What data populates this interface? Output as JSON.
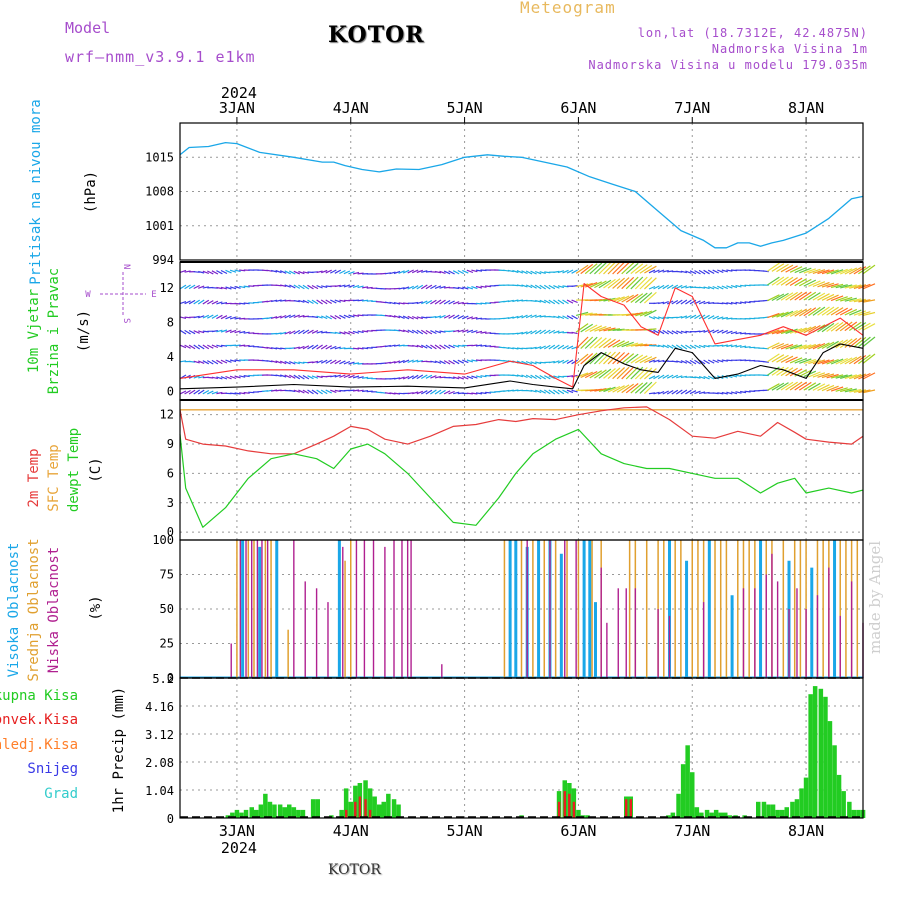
{
  "header": {
    "model_label": "Model",
    "model_run": "wrf—nmm_v3.9.1  e1km",
    "location_title": "KOTOR",
    "meteogram_label": "Meteogram",
    "lonlat": "lon,lat (18.7312E, 42.4875N)",
    "elevation": "Nadmorska Visina 1m",
    "model_elevation": "Nadmorska Visina u modelu 179.035m"
  },
  "footer": {
    "location": "KOTOR"
  },
  "watermark": "made by Angel",
  "time_axis": {
    "year": "2024",
    "days": [
      "3JAN",
      "4JAN",
      "5JAN",
      "6JAN",
      "7JAN",
      "8JAN"
    ]
  },
  "colors": {
    "pressure": "#1aa7e8",
    "temp2m": "#e63c3c",
    "sfc_temp": "#e8a53a",
    "dewpoint": "#22cc22",
    "high_cloud": "#1aa7e8",
    "mid_cloud": "#e0a030",
    "low_cloud": "#b02090",
    "total_precip": "#22cc22",
    "conv_precip": "#e62020",
    "freezing": "#ff7f2a",
    "snow": "#3a3ae6",
    "hail": "#33cccc",
    "wind_speed": "#000000",
    "gust": "#ff3030"
  },
  "chart_data": [
    {
      "type": "line",
      "id": "pressure",
      "ylabel_name": "Pritisak na nivou mora",
      "ylabel_unit": "(hPa)",
      "ylim": [
        994,
        1022
      ],
      "yticks": [
        "1015",
        "1008",
        "1001",
        "994"
      ],
      "x_days": [
        2.5,
        2.58,
        2.75,
        2.9,
        3.0,
        3.2,
        3.5,
        3.75,
        3.85,
        3.95,
        4.1,
        4.25,
        4.4,
        4.6,
        4.8,
        5.0,
        5.2,
        5.35,
        5.5,
        5.7,
        5.9,
        6.1,
        6.3,
        6.5,
        6.7,
        6.9,
        7.1,
        7.2,
        7.3,
        7.4,
        7.5,
        7.6,
        7.7,
        7.8,
        8.0,
        8.2,
        8.4,
        8.5
      ],
      "values": [
        1015.5,
        1017,
        1017.2,
        1018,
        1017.8,
        1016,
        1015,
        1014,
        1014,
        1013.3,
        1012.5,
        1012,
        1012.6,
        1012.5,
        1013.5,
        1015,
        1015.5,
        1015.2,
        1015,
        1014,
        1013,
        1011,
        1009.5,
        1008,
        1004,
        1000,
        998,
        996.5,
        996.5,
        997.5,
        997.5,
        996.8,
        997.5,
        998,
        999.5,
        1002.5,
        1006.5,
        1007
      ]
    },
    {
      "type": "line",
      "id": "wind",
      "ylabel_name": "10m Vjetar",
      "ylabel_name2": "Brzina i Pravac",
      "ylabel_unit": "(m/s)",
      "compass": {
        "n": "N",
        "s": "S",
        "w": "W",
        "e": "E"
      },
      "ylim": [
        -1,
        15
      ],
      "yticks": [
        "12",
        "8",
        "4",
        "0"
      ],
      "x_days": [
        2.5,
        3.0,
        3.5,
        4.0,
        4.5,
        5.0,
        5.4,
        5.6,
        5.8,
        5.95,
        6.05,
        6.2,
        6.4,
        6.55,
        6.7,
        6.85,
        7.0,
        7.2,
        7.4,
        7.6,
        7.8,
        8.0,
        8.15,
        8.3,
        8.5
      ],
      "speed": [
        0.3,
        0.5,
        0.8,
        0.5,
        0.6,
        0.4,
        1.2,
        0.8,
        0.5,
        0.3,
        3.0,
        4.5,
        3.2,
        2.5,
        2.2,
        5.0,
        4.5,
        1.5,
        2.0,
        3.0,
        2.5,
        1.5,
        4.5,
        5.5,
        5.0
      ],
      "gust": [
        1.5,
        2.5,
        2.5,
        2.0,
        2.5,
        2.0,
        3.5,
        3.0,
        1.5,
        0.5,
        12.5,
        11.0,
        10.0,
        7.5,
        6.5,
        12.0,
        11.0,
        5.5,
        6.0,
        6.5,
        7.5,
        6.5,
        7.5,
        8.5,
        6.5
      ]
    },
    {
      "type": "line",
      "id": "temperature",
      "ylabel_name": "2m Temp",
      "ylabel_name2": "SFC Temp",
      "ylabel_name3": "dewpt Temp",
      "ylabel_unit": "(C)",
      "ylim": [
        -0.8,
        13.5
      ],
      "yticks": [
        "12",
        "9",
        "6",
        "3",
        "0"
      ],
      "x_days": [
        2.5,
        2.55,
        2.7,
        2.9,
        3.1,
        3.3,
        3.5,
        3.7,
        3.85,
        4.0,
        4.15,
        4.3,
        4.5,
        4.7,
        4.9,
        5.1,
        5.3,
        5.45,
        5.6,
        5.8,
        6.0,
        6.2,
        6.4,
        6.6,
        6.8,
        7.0,
        7.2,
        7.4,
        7.6,
        7.75,
        7.9,
        8.0,
        8.2,
        8.4,
        8.5
      ],
      "temp2m": [
        12.5,
        9.5,
        9.0,
        8.8,
        8.3,
        8.0,
        8.0,
        9.0,
        9.8,
        10.8,
        10.5,
        9.5,
        9.0,
        9.8,
        10.8,
        11.0,
        11.5,
        11.3,
        11.6,
        11.5,
        12.0,
        12.4,
        12.7,
        12.8,
        11.5,
        9.8,
        9.6,
        10.3,
        9.8,
        11.2,
        10.2,
        9.5,
        9.2,
        9.0,
        9.8
      ],
      "sfc_temp": 12.5,
      "dewpoint": [
        10.0,
        4.5,
        0.5,
        2.5,
        5.5,
        7.5,
        8.0,
        7.5,
        6.5,
        8.5,
        9.0,
        8.0,
        6.0,
        3.5,
        1.0,
        0.7,
        3.5,
        6.0,
        8.0,
        9.5,
        10.5,
        8.0,
        7.0,
        6.5,
        6.5,
        6.0,
        5.5,
        5.5,
        4.0,
        5.0,
        5.5,
        4.0,
        4.5,
        4.0,
        4.3
      ]
    },
    {
      "type": "bar",
      "id": "cloud",
      "ylabel_name": "Visoka Oblacnost",
      "ylabel_name2": "Srednja Oblacnost",
      "ylabel_name3": "Niska Oblacnost",
      "ylabel_unit": "(%)",
      "ylim": [
        0,
        100
      ],
      "yticks": [
        "100",
        "75",
        "50",
        "25",
        "0"
      ],
      "series": [
        {
          "name": "Visoka Oblacnost",
          "x_days": [
            3.05,
            3.2,
            3.35,
            3.9,
            5.4,
            5.45,
            5.55,
            5.65,
            5.75,
            5.85,
            6.05,
            6.1,
            6.15,
            6.8,
            6.95,
            7.15,
            7.35,
            7.6,
            7.85,
            8.05,
            8.25
          ],
          "values": [
            100,
            95,
            100,
            100,
            100,
            100,
            95,
            100,
            100,
            90,
            100,
            100,
            55,
            100,
            85,
            100,
            60,
            100,
            85,
            80,
            100
          ]
        },
        {
          "name": "Srednja Oblacnost",
          "x_days": [
            3.0,
            3.1,
            3.15,
            3.25,
            3.3,
            3.45,
            3.95,
            4.0,
            5.35,
            5.5,
            5.6,
            5.7,
            5.8,
            5.9,
            6.0,
            6.12,
            6.2,
            6.45,
            6.5,
            6.6,
            6.7,
            6.75,
            6.85,
            6.9,
            7.0,
            7.05,
            7.1,
            7.2,
            7.25,
            7.3,
            7.4,
            7.45,
            7.5,
            7.55,
            7.65,
            7.7,
            7.8,
            7.9,
            7.95,
            8.0,
            8.1,
            8.15,
            8.2,
            8.3,
            8.35,
            8.4,
            8.45
          ],
          "values": [
            100,
            100,
            100,
            100,
            100,
            35,
            85,
            100,
            100,
            100,
            100,
            100,
            100,
            100,
            100,
            100,
            100,
            100,
            100,
            100,
            100,
            100,
            100,
            100,
            100,
            100,
            100,
            100,
            100,
            100,
            100,
            100,
            100,
            100,
            100,
            100,
            100,
            100,
            100,
            100,
            100,
            100,
            100,
            100,
            100,
            100,
            100
          ]
        },
        {
          "name": "Niska Oblacnost",
          "x_days": [
            2.95,
            3.03,
            3.08,
            3.13,
            3.18,
            3.22,
            3.27,
            3.5,
            3.6,
            3.7,
            3.8,
            3.93,
            4.05,
            4.12,
            4.2,
            4.3,
            4.38,
            4.45,
            4.5,
            4.53,
            4.8,
            5.55,
            5.75,
            5.88,
            5.98,
            6.2,
            6.25,
            6.35,
            6.42,
            6.5,
            6.7,
            6.8,
            7.1,
            7.45,
            7.55,
            7.65,
            7.7,
            7.75,
            7.85,
            7.92,
            8.0,
            8.1,
            8.2,
            8.3,
            8.4,
            8.5
          ],
          "values": [
            25,
            100,
            100,
            100,
            100,
            100,
            100,
            100,
            70,
            65,
            55,
            95,
            100,
            100,
            100,
            95,
            100,
            100,
            100,
            100,
            10,
            100,
            100,
            100,
            100,
            80,
            40,
            65,
            65,
            65,
            50,
            45,
            55,
            65,
            65,
            75,
            90,
            70,
            50,
            65,
            50,
            60,
            80,
            45,
            70,
            40
          ]
        }
      ]
    },
    {
      "type": "bar",
      "id": "precip",
      "ylabel_unit": "1hr Precip (mm)",
      "legend": [
        "Ukupna Kisa",
        "Konvek.Kisa",
        "Zaledj.Kisa",
        "Snijeg",
        "Grad"
      ],
      "ylim": [
        0,
        5.2
      ],
      "yticks": [
        "5.2",
        "4.16",
        "3.12",
        "2.08",
        "1.04",
        "0"
      ],
      "total": {
        "x_days": [
          2.92,
          2.96,
          3.0,
          3.04,
          3.08,
          3.13,
          3.17,
          3.21,
          3.25,
          3.29,
          3.33,
          3.38,
          3.42,
          3.46,
          3.5,
          3.54,
          3.58,
          3.67,
          3.71,
          3.83,
          3.92,
          3.96,
          4.0,
          4.04,
          4.08,
          4.13,
          4.17,
          4.21,
          4.25,
          4.29,
          4.33,
          4.38,
          4.42,
          5.5,
          5.83,
          5.88,
          5.92,
          5.96,
          6.0,
          6.04,
          6.08,
          6.42,
          6.46,
          6.79,
          6.83,
          6.88,
          6.92,
          6.96,
          7.0,
          7.04,
          7.08,
          7.13,
          7.17,
          7.21,
          7.25,
          7.29,
          7.33,
          7.38,
          7.46,
          7.58,
          7.63,
          7.67,
          7.71,
          7.75,
          7.79,
          7.83,
          7.88,
          7.92,
          7.96,
          8.0,
          8.04,
          8.08,
          8.13,
          8.17,
          8.21,
          8.25,
          8.29,
          8.33,
          8.38,
          8.42,
          8.46,
          8.5
        ],
        "values": [
          0.1,
          0.2,
          0.3,
          0.2,
          0.3,
          0.4,
          0.3,
          0.5,
          0.9,
          0.6,
          0.5,
          0.5,
          0.4,
          0.5,
          0.4,
          0.3,
          0.3,
          0.7,
          0.7,
          0.1,
          0.3,
          1.1,
          0.6,
          1.2,
          1.3,
          1.4,
          1.1,
          0.8,
          0.5,
          0.6,
          0.9,
          0.7,
          0.5,
          0.1,
          1.0,
          1.4,
          1.3,
          1.1,
          0.3,
          0.1,
          0.1,
          0.8,
          0.8,
          0.1,
          0.2,
          0.9,
          2.0,
          2.7,
          1.7,
          0.4,
          0.2,
          0.3,
          0.2,
          0.3,
          0.2,
          0.2,
          0.1,
          0.1,
          0.1,
          0.6,
          0.6,
          0.5,
          0.5,
          0.3,
          0.3,
          0.4,
          0.6,
          0.7,
          1.1,
          1.5,
          4.6,
          4.9,
          4.8,
          4.5,
          3.6,
          2.7,
          1.6,
          1.0,
          0.6,
          0.3,
          0.3,
          0.3
        ]
      },
      "convective": {
        "x_days": [
          3.96,
          4.04,
          4.08,
          4.13,
          4.17,
          5.83,
          5.88,
          5.92,
          5.96,
          6.42,
          6.46
        ],
        "values": [
          0.3,
          0.6,
          0.8,
          0.7,
          0.3,
          0.6,
          1.0,
          0.9,
          0.6,
          0.7,
          0.7
        ]
      }
    }
  ]
}
